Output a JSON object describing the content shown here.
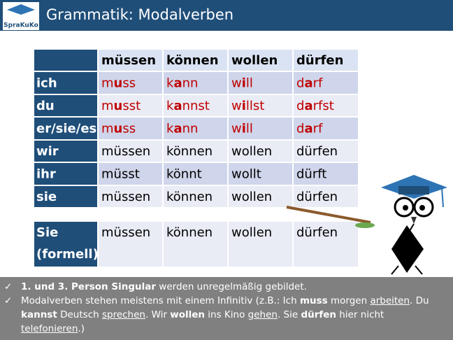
{
  "header": {
    "logo": "SpraKuKo",
    "title": "Grammatik: Modalverben"
  },
  "table": {
    "columns": [
      "müssen",
      "können",
      "wollen",
      "dürfen"
    ],
    "rows": [
      {
        "label": "ich",
        "color": "#c00000",
        "cells": [
          [
            "m",
            "u",
            "ss"
          ],
          [
            "k",
            "a",
            "nn"
          ],
          [
            "w",
            "i",
            "ll"
          ],
          [
            "d",
            "a",
            "rf"
          ]
        ]
      },
      {
        "label": "du",
        "color": "#c00000",
        "cells": [
          [
            "m",
            "u",
            "sst"
          ],
          [
            "k",
            "a",
            "nnst"
          ],
          [
            "w",
            "i",
            "llst"
          ],
          [
            "d",
            "a",
            "rfst"
          ]
        ]
      },
      {
        "label": "er/sie/es",
        "color": "#c00000",
        "cells": [
          [
            "m",
            "u",
            "ss"
          ],
          [
            "k",
            "a",
            "nn"
          ],
          [
            "w",
            "i",
            "ll"
          ],
          [
            "d",
            "a",
            "rf"
          ]
        ]
      },
      {
        "label": "wir",
        "color": "#000000",
        "cells": [
          [
            "müssen"
          ],
          [
            "können"
          ],
          [
            "wollen"
          ],
          [
            "dürfen"
          ]
        ]
      },
      {
        "label": "ihr",
        "color": "#000000",
        "cells": [
          [
            "müsst"
          ],
          [
            "könnt"
          ],
          [
            "wollt"
          ],
          [
            "dürft"
          ]
        ]
      },
      {
        "label": "sie",
        "color": "#000000",
        "cells": [
          [
            "müssen"
          ],
          [
            "können"
          ],
          [
            "wollen"
          ],
          [
            "dürfen"
          ]
        ]
      }
    ],
    "formal": {
      "label": [
        "Sie",
        "(formell)"
      ],
      "cells": [
        "müssen",
        "können",
        "wollen",
        "dürfen"
      ]
    }
  },
  "notes": [
    [
      {
        "t": "1. und 3. Person Singular",
        "b": true
      },
      {
        "t": " werden unregelmäßig gebildet."
      }
    ],
    [
      {
        "t": "Modalverben stehen meistens mit einem Infinitiv (z.B.: Ich "
      },
      {
        "t": "muss",
        "b": true
      },
      {
        "t": " morgen "
      },
      {
        "t": "arbeiten",
        "u": true
      },
      {
        "t": ". Du "
      },
      {
        "t": "kannst",
        "b": true
      },
      {
        "t": " Deutsch "
      },
      {
        "t": "sprechen",
        "u": true
      },
      {
        "t": ". Wir "
      },
      {
        "t": "wollen",
        "b": true
      },
      {
        "t": " ins Kino "
      },
      {
        "t": "gehen",
        "u": true
      },
      {
        "t": ". Sie "
      },
      {
        "t": "dürfen",
        "b": true
      },
      {
        "t": " hier nicht "
      },
      {
        "t": "telefonieren",
        "u": true
      },
      {
        "t": ".)"
      }
    ]
  ]
}
